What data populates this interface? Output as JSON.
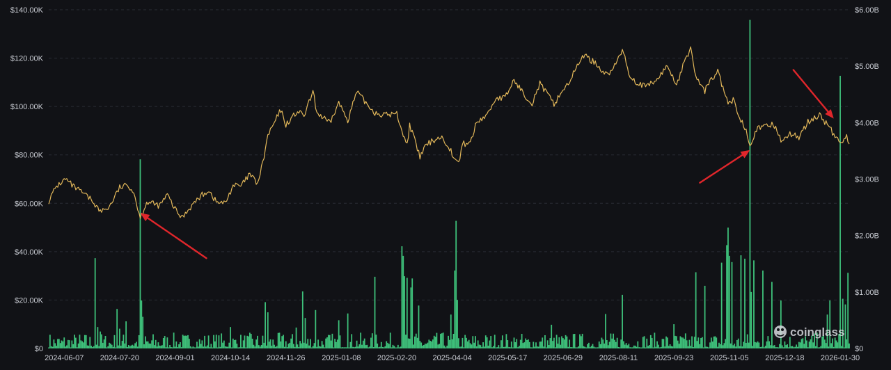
{
  "chart_data": {
    "type": "bar+line",
    "left_axis": {
      "unit": "price",
      "ylim": [
        0,
        140000
      ],
      "tick_labels": [
        "$0",
        "$20.00K",
        "$40.00K",
        "$60.00K",
        "$80.00K",
        "$100.00K",
        "$120.00K",
        "$140.00K"
      ]
    },
    "right_axis": {
      "unit": "volume",
      "ylim": [
        0,
        6000000000
      ],
      "tick_labels": [
        "$0",
        "$1.00B",
        "$2.00B",
        "$3.00B",
        "$4.00B",
        "$5.00B",
        "$6.00B"
      ]
    },
    "x_tick_labels": [
      "2024-06-07",
      "2024-07-20",
      "2024-09-01",
      "2024-10-14",
      "2024-11-26",
      "2025-01-08",
      "2025-02-20",
      "2025-04-04",
      "2025-05-17",
      "2025-06-29",
      "2025-08-11",
      "2025-09-23",
      "2025-11-05",
      "2025-12-18",
      "2026-01-30"
    ],
    "x_range": [
      "2024-05-26",
      "2026-02-06"
    ],
    "grid": "horizontal dashed",
    "colors": {
      "background": "#111216",
      "price_line": "#e3b85a",
      "volume_bars": "#3ec07a",
      "arrows": "#e0262b",
      "text": "#c9ccd3",
      "grid": "#2a2d35"
    },
    "price_series": {
      "color": "#e3b85a",
      "points": [
        [
          "2024-05-26",
          61000
        ],
        [
          "2024-06-01",
          67000
        ],
        [
          "2024-06-08",
          70000
        ],
        [
          "2024-06-15",
          66500
        ],
        [
          "2024-06-22",
          64000
        ],
        [
          "2024-06-29",
          61000
        ],
        [
          "2024-07-05",
          56500
        ],
        [
          "2024-07-12",
          58500
        ],
        [
          "2024-07-20",
          66500
        ],
        [
          "2024-07-27",
          67500
        ],
        [
          "2024-07-31",
          64500
        ],
        [
          "2024-08-05",
          54000
        ],
        [
          "2024-08-10",
          60500
        ],
        [
          "2024-08-20",
          59000
        ],
        [
          "2024-08-26",
          63500
        ],
        [
          "2024-09-01",
          57500
        ],
        [
          "2024-09-06",
          54000
        ],
        [
          "2024-09-13",
          58500
        ],
        [
          "2024-09-20",
          62500
        ],
        [
          "2024-09-27",
          65500
        ],
        [
          "2024-10-03",
          60500
        ],
        [
          "2024-10-10",
          60000
        ],
        [
          "2024-10-16",
          67500
        ],
        [
          "2024-10-22",
          67000
        ],
        [
          "2024-10-29",
          72000
        ],
        [
          "2024-11-04",
          68000
        ],
        [
          "2024-11-08",
          76500
        ],
        [
          "2024-11-12",
          88000
        ],
        [
          "2024-11-22",
          98500
        ],
        [
          "2024-11-26",
          92500
        ],
        [
          "2024-12-05",
          98000
        ],
        [
          "2024-12-10",
          96000
        ],
        [
          "2024-12-17",
          106000
        ],
        [
          "2024-12-20",
          97500
        ],
        [
          "2024-12-30",
          93000
        ],
        [
          "2025-01-06",
          101500
        ],
        [
          "2025-01-13",
          94500
        ],
        [
          "2025-01-20",
          106000
        ],
        [
          "2025-01-27",
          101500
        ],
        [
          "2025-02-03",
          97500
        ],
        [
          "2025-02-10",
          96500
        ],
        [
          "2025-02-20",
          97000
        ],
        [
          "2025-02-25",
          88500
        ],
        [
          "2025-02-28",
          84000
        ],
        [
          "2025-03-02",
          92500
        ],
        [
          "2025-03-10",
          79000
        ],
        [
          "2025-03-14",
          83500
        ],
        [
          "2025-03-20",
          86000
        ],
        [
          "2025-03-26",
          87500
        ],
        [
          "2025-04-01",
          84000
        ],
        [
          "2025-04-07",
          77000
        ],
        [
          "2025-04-09",
          76500
        ],
        [
          "2025-04-12",
          84500
        ],
        [
          "2025-04-18",
          85000
        ],
        [
          "2025-04-23",
          93500
        ],
        [
          "2025-05-01",
          96500
        ],
        [
          "2025-05-08",
          103500
        ],
        [
          "2025-05-15",
          103500
        ],
        [
          "2025-05-22",
          111000
        ],
        [
          "2025-05-29",
          105500
        ],
        [
          "2025-06-05",
          101500
        ],
        [
          "2025-06-11",
          109500
        ],
        [
          "2025-06-22",
          101000
        ],
        [
          "2025-06-29",
          107000
        ],
        [
          "2025-07-03",
          109500
        ],
        [
          "2025-07-11",
          117500
        ],
        [
          "2025-07-14",
          121500
        ],
        [
          "2025-07-24",
          118000
        ],
        [
          "2025-08-02",
          113000
        ],
        [
          "2025-08-08",
          116500
        ],
        [
          "2025-08-14",
          123500
        ],
        [
          "2025-08-20",
          112500
        ],
        [
          "2025-08-25",
          110000
        ],
        [
          "2025-09-01",
          108000
        ],
        [
          "2025-09-10",
          111000
        ],
        [
          "2025-09-18",
          117000
        ],
        [
          "2025-09-25",
          109000
        ],
        [
          "2025-10-01",
          118000
        ],
        [
          "2025-10-06",
          124500
        ],
        [
          "2025-10-10",
          112000
        ],
        [
          "2025-10-17",
          106500
        ],
        [
          "2025-10-21",
          110500
        ],
        [
          "2025-10-27",
          114500
        ],
        [
          "2025-11-04",
          101000
        ],
        [
          "2025-11-08",
          102500
        ],
        [
          "2025-11-14",
          94500
        ],
        [
          "2025-11-18",
          90500
        ],
        [
          "2025-11-21",
          84500
        ],
        [
          "2025-11-26",
          90500
        ],
        [
          "2025-12-02",
          91500
        ],
        [
          "2025-12-09",
          93000
        ],
        [
          "2025-12-15",
          86500
        ],
        [
          "2025-12-22",
          88500
        ],
        [
          "2025-12-29",
          87500
        ],
        [
          "2026-01-05",
          93500
        ],
        [
          "2026-01-14",
          96500
        ],
        [
          "2026-01-20",
          92500
        ],
        [
          "2026-01-25",
          88500
        ],
        [
          "2026-01-30",
          84500
        ],
        [
          "2026-02-04",
          88500
        ],
        [
          "2026-02-06",
          84500
        ]
      ]
    },
    "volume_series": {
      "color": "#3ec07a",
      "baseline_amplitude_usd": 120000000,
      "spikes": [
        [
          "2024-07-01",
          1600000000
        ],
        [
          "2024-07-03",
          380000000
        ],
        [
          "2024-07-05",
          300000000
        ],
        [
          "2024-07-18",
          700000000
        ],
        [
          "2024-07-20",
          350000000
        ],
        [
          "2024-07-25",
          480000000
        ],
        [
          "2024-08-05",
          3350000000
        ],
        [
          "2024-08-06",
          850000000
        ],
        [
          "2024-08-07",
          560000000
        ],
        [
          "2024-10-14",
          380000000
        ],
        [
          "2024-11-10",
          820000000
        ],
        [
          "2024-11-12",
          640000000
        ],
        [
          "2024-12-04",
          370000000
        ],
        [
          "2024-12-09",
          1010000000
        ],
        [
          "2024-12-11",
          540000000
        ],
        [
          "2024-12-19",
          680000000
        ],
        [
          "2025-01-06",
          500000000
        ],
        [
          "2025-01-13",
          620000000
        ],
        [
          "2025-02-03",
          1270000000
        ],
        [
          "2025-02-24",
          1810000000
        ],
        [
          "2025-02-25",
          1640000000
        ],
        [
          "2025-02-26",
          1280000000
        ],
        [
          "2025-02-28",
          1250000000
        ],
        [
          "2025-03-03",
          1080000000
        ],
        [
          "2025-03-04",
          1240000000
        ],
        [
          "2025-03-09",
          760000000
        ],
        [
          "2025-03-28",
          280000000
        ],
        [
          "2025-04-03",
          600000000
        ],
        [
          "2025-04-06",
          1380000000
        ],
        [
          "2025-04-07",
          2260000000
        ],
        [
          "2025-04-08",
          860000000
        ],
        [
          "2025-06-20",
          420000000
        ],
        [
          "2025-08-01",
          610000000
        ],
        [
          "2025-08-14",
          950000000
        ],
        [
          "2025-09-23",
          430000000
        ],
        [
          "2025-10-10",
          1350000000
        ],
        [
          "2025-10-17",
          1110000000
        ],
        [
          "2025-10-30",
          1520000000
        ],
        [
          "2025-11-03",
          1830000000
        ],
        [
          "2025-11-04",
          2140000000
        ],
        [
          "2025-11-05",
          1640000000
        ],
        [
          "2025-11-07",
          1530000000
        ],
        [
          "2025-11-14",
          1650000000
        ],
        [
          "2025-11-17",
          1590000000
        ],
        [
          "2025-11-21",
          5820000000
        ],
        [
          "2025-11-22",
          1000000000
        ],
        [
          "2025-11-24",
          1560000000
        ],
        [
          "2025-12-01",
          1380000000
        ],
        [
          "2025-12-08",
          1180000000
        ],
        [
          "2025-12-15",
          850000000
        ],
        [
          "2026-01-20",
          600000000
        ],
        [
          "2026-01-22",
          850000000
        ],
        [
          "2026-01-30",
          4830000000
        ],
        [
          "2026-02-01",
          880000000
        ],
        [
          "2026-02-03",
          780000000
        ],
        [
          "2026-02-05",
          1340000000
        ]
      ]
    },
    "annotations": [
      {
        "kind": "arrow",
        "color": "#e0262b",
        "points_to": [
          "2024-08-05",
          56000
        ]
      },
      {
        "kind": "arrow",
        "color": "#e0262b",
        "points_to": [
          "2025-11-21",
          82000
        ]
      },
      {
        "kind": "arrow",
        "color": "#e0262b",
        "points_to": [
          "2026-01-25",
          95000
        ]
      }
    ]
  },
  "watermark": {
    "text": "coinglass",
    "icon": "coinglass-logo-icon"
  }
}
